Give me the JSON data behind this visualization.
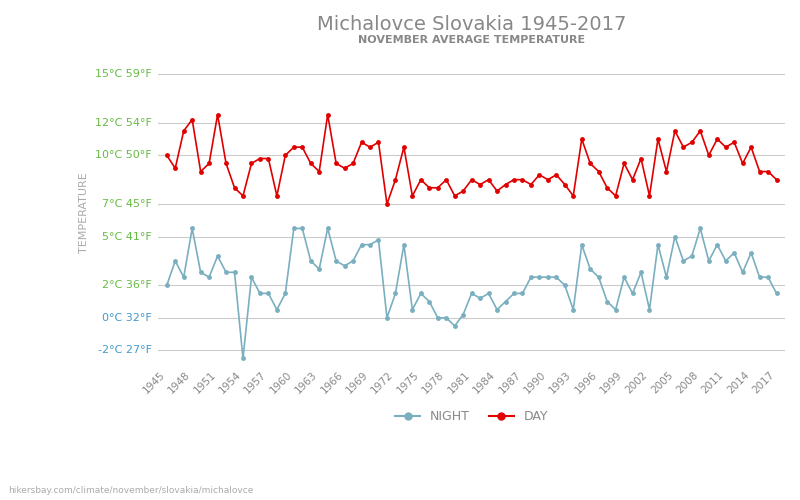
{
  "title": "Michalovce Slovakia 1945-2017",
  "subtitle": "NOVEMBER AVERAGE TEMPERATURE",
  "xlabel_bottom": "hikersbay.com/climate/november/slovakia/michalovce",
  "ylabel": "TEMPERATURE",
  "legend_night": "NIGHT",
  "legend_day": "DAY",
  "years": [
    1945,
    1946,
    1947,
    1948,
    1949,
    1950,
    1951,
    1952,
    1953,
    1954,
    1955,
    1956,
    1957,
    1958,
    1959,
    1960,
    1961,
    1962,
    1963,
    1964,
    1965,
    1966,
    1967,
    1968,
    1969,
    1970,
    1971,
    1972,
    1973,
    1974,
    1975,
    1976,
    1977,
    1978,
    1979,
    1980,
    1981,
    1982,
    1983,
    1984,
    1985,
    1986,
    1987,
    1988,
    1989,
    1990,
    1991,
    1992,
    1993,
    1994,
    1995,
    1996,
    1997,
    1998,
    1999,
    2000,
    2001,
    2002,
    2003,
    2004,
    2005,
    2006,
    2007,
    2008,
    2009,
    2010,
    2011,
    2012,
    2013,
    2014,
    2015,
    2016,
    2017
  ],
  "day_temps": [
    10.0,
    9.2,
    11.5,
    12.2,
    9.0,
    9.5,
    12.5,
    9.5,
    8.0,
    7.5,
    9.5,
    9.8,
    9.8,
    7.5,
    10.0,
    10.5,
    10.5,
    9.5,
    9.0,
    12.5,
    9.5,
    9.2,
    9.5,
    10.8,
    10.5,
    10.8,
    7.0,
    8.5,
    10.5,
    7.5,
    8.5,
    8.0,
    8.0,
    8.5,
    7.5,
    7.8,
    8.5,
    8.2,
    8.5,
    7.8,
    8.2,
    8.5,
    8.5,
    8.2,
    8.8,
    8.5,
    8.8,
    8.2,
    7.5,
    11.0,
    9.5,
    9.0,
    8.0,
    7.5,
    9.5,
    8.5,
    9.8,
    7.5,
    11.0,
    9.0,
    11.5,
    10.5,
    10.8,
    11.5,
    10.0,
    11.0,
    10.5,
    10.8,
    9.5,
    10.5,
    9.0,
    9.0,
    8.5
  ],
  "night_temps": [
    2.0,
    3.5,
    2.5,
    5.5,
    2.8,
    2.5,
    3.8,
    2.8,
    2.8,
    -2.5,
    2.5,
    1.5,
    1.5,
    0.5,
    1.5,
    5.5,
    5.5,
    3.5,
    3.0,
    5.5,
    3.5,
    3.2,
    3.5,
    4.5,
    4.5,
    4.8,
    0.0,
    1.5,
    4.5,
    0.5,
    1.5,
    1.0,
    0.0,
    0.0,
    -0.5,
    0.2,
    1.5,
    1.2,
    1.5,
    0.5,
    1.0,
    1.5,
    1.5,
    2.5,
    2.5,
    2.5,
    2.5,
    2.0,
    0.5,
    4.5,
    3.0,
    2.5,
    1.0,
    0.5,
    2.5,
    1.5,
    2.8,
    0.5,
    4.5,
    2.5,
    5.0,
    3.5,
    3.8,
    5.5,
    3.5,
    4.5,
    3.5,
    4.0,
    2.8,
    4.0,
    2.5,
    2.5,
    1.5
  ],
  "day_color": "#e00000",
  "night_color": "#7aafc0",
  "grid_color": "#cccccc",
  "title_color": "#888888",
  "subtitle_color": "#888888",
  "ylabel_color": "#aaaaaa",
  "tick_label_color_green": "#66bb44",
  "tick_label_color_blue": "#4499cc",
  "background_color": "#ffffff",
  "ylim_min": -3,
  "ylim_max": 16,
  "yticks_celsius": [
    15,
    12,
    10,
    7,
    5,
    2,
    0,
    -2
  ],
  "yticks_fahrenheit": [
    59,
    54,
    50,
    45,
    41,
    36,
    32,
    27
  ]
}
